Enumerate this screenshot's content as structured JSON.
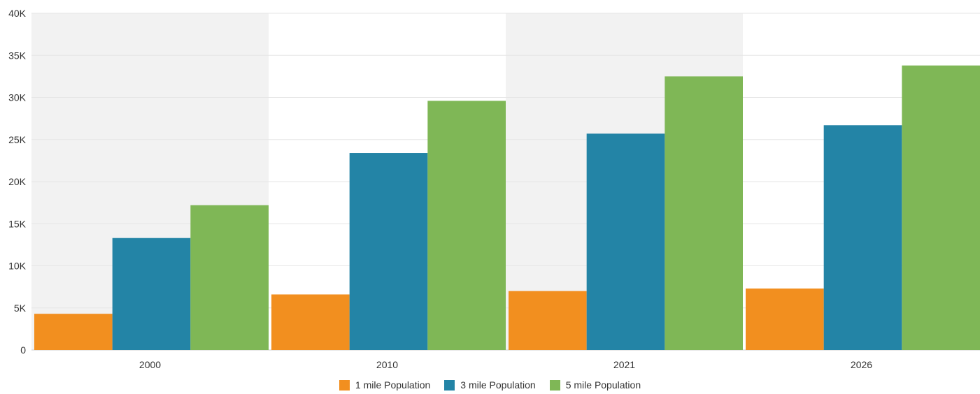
{
  "chart_data": {
    "type": "bar",
    "title": "",
    "xlabel": "",
    "ylabel": "",
    "categories": [
      "2000",
      "2010",
      "2021",
      "2026"
    ],
    "series": [
      {
        "name": "1 mile Population",
        "color": "#f28f1f",
        "values": [
          4300,
          6600,
          7000,
          7300
        ]
      },
      {
        "name": "3 mile Population",
        "color": "#2384a6",
        "values": [
          13300,
          23400,
          25700,
          26700
        ]
      },
      {
        "name": "5 mile Population",
        "color": "#7fb756",
        "values": [
          17200,
          29600,
          32500,
          33800
        ]
      }
    ],
    "ylim": [
      0,
      40000
    ],
    "yticks": [
      0,
      5000,
      10000,
      15000,
      20000,
      25000,
      30000,
      35000,
      40000
    ],
    "ytick_labels": [
      "0",
      "5K",
      "10K",
      "15K",
      "20K",
      "25K",
      "30K",
      "35K",
      "40K"
    ],
    "grid": true,
    "alternating_band_color": "#f2f2f2",
    "legend_position": "bottom"
  }
}
